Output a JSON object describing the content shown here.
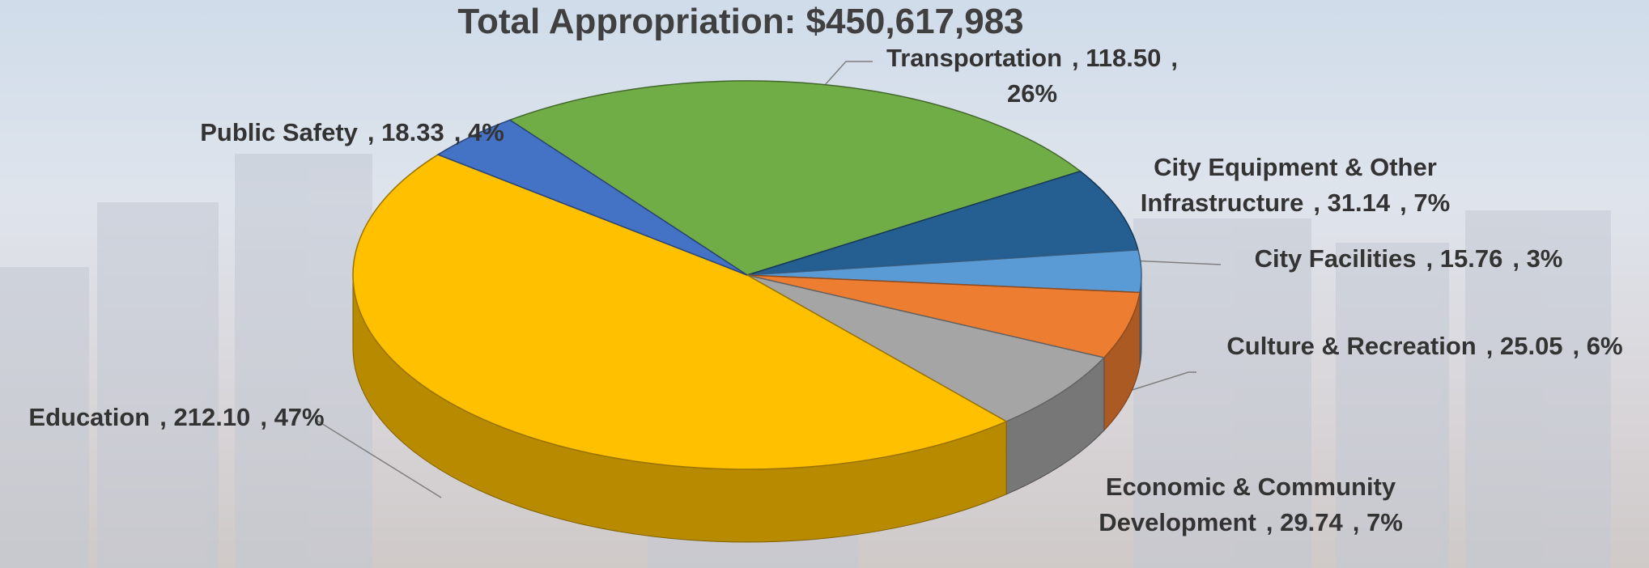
{
  "chart_data": {
    "type": "pie3d",
    "title": "Total Appropriation: $450,617,983",
    "categories": [
      "Transportation",
      "City Equipment & Other Infrastructure",
      "City Facilities",
      "Culture & Recreation",
      "Economic & Community Development",
      "Education",
      "Public Safety"
    ],
    "values": [
      118.5,
      31.14,
      15.76,
      25.05,
      29.74,
      212.1,
      18.33
    ],
    "value_labels": [
      "118.50",
      "31.14",
      "15.76",
      "25.05",
      "29.74",
      "212.10",
      "18.33"
    ],
    "percents": [
      26,
      7,
      3,
      6,
      7,
      47,
      4
    ],
    "percent_labels": [
      "26%",
      "7%",
      "3%",
      "6%",
      "7%",
      "47%",
      "4%"
    ],
    "label_separator": ",",
    "colors": [
      "#70ad47",
      "#255e91",
      "#5b9bd5",
      "#ed7d31",
      "#a5a5a5",
      "#ffc000",
      "#4472c4"
    ]
  }
}
